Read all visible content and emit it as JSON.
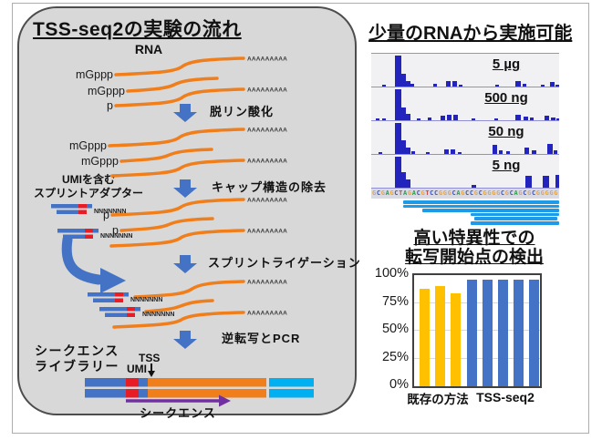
{
  "colors": {
    "rna_orange": "#F07E1A",
    "step_arrow_blue": "#4472C4",
    "adapter_blue": "#4472C4",
    "umi_red": "#E81C24",
    "library_cyan": "#00B0F0",
    "sequence_arrow_purple": "#7030A0",
    "panel_fill": "#D8D8D8",
    "panel_border": "#4D4D4D",
    "track_bar_blue": "#2323BE",
    "read_blue": "#1E9BE8",
    "chart_yellow": "#FFC000",
    "chart_blue": "#4472C4",
    "base_A": "#2E9E4F",
    "base_C": "#3B53C4",
    "base_G": "#E8A33D",
    "base_T": "#D94040"
  },
  "left_panel": {
    "title": "TSS-seq2の実験の流れ",
    "rna_heading": "RNA",
    "strand_labels": {
      "mgppp": "mGppp",
      "p": "p"
    },
    "polya_tail": "AAAAAAAAA",
    "adapter_n": "NNNNNNN",
    "steps": [
      "脱リン酸化",
      "キャップ構造の除去",
      "スプリントライゲーション",
      "逆転写とPCR"
    ],
    "adapter_caption": [
      "UMIを含む",
      "スプリントアダプター"
    ],
    "library_caption": [
      "シークエンス",
      "ライブラリー"
    ],
    "umi_label": "UMI",
    "tss_label": "TSS",
    "sequencing_label": "シークエンス"
  },
  "right_top": {
    "title": "少量のRNAから実施可能",
    "tracks": [
      {
        "label": "5 µg",
        "bars": [
          [
            12,
            4,
            0.06
          ],
          [
            26,
            7,
            1.0
          ],
          [
            33,
            5,
            0.4
          ],
          [
            38,
            5,
            0.18
          ],
          [
            43,
            4,
            0.08
          ],
          [
            68,
            4,
            0.08
          ],
          [
            82,
            5,
            0.17
          ],
          [
            89,
            5,
            0.17
          ],
          [
            96,
            4,
            0.06
          ],
          [
            136,
            4,
            0.05
          ],
          [
            158,
            6,
            0.18
          ],
          [
            166,
            4,
            0.08
          ],
          [
            186,
            4,
            0.05
          ],
          [
            196,
            5,
            0.14
          ],
          [
            202,
            4,
            0.07
          ]
        ]
      },
      {
        "label": "500 ng",
        "bars": [
          [
            5,
            4,
            0.05
          ],
          [
            12,
            4,
            0.06
          ],
          [
            26,
            7,
            1.0
          ],
          [
            33,
            5,
            0.42
          ],
          [
            38,
            5,
            0.2
          ],
          [
            50,
            4,
            0.06
          ],
          [
            62,
            4,
            0.08
          ],
          [
            76,
            5,
            0.14
          ],
          [
            83,
            5,
            0.17
          ],
          [
            90,
            5,
            0.17
          ],
          [
            110,
            4,
            0.06
          ],
          [
            135,
            4,
            0.07
          ],
          [
            158,
            6,
            0.18
          ],
          [
            167,
            5,
            0.12
          ],
          [
            174,
            4,
            0.08
          ],
          [
            190,
            5,
            0.15
          ],
          [
            197,
            5,
            0.1
          ],
          [
            203,
            3,
            0.06
          ]
        ]
      },
      {
        "label": "50 ng",
        "bars": [
          [
            8,
            4,
            0.05
          ],
          [
            26,
            7,
            1.0
          ],
          [
            33,
            5,
            0.45
          ],
          [
            38,
            5,
            0.2
          ],
          [
            44,
            4,
            0.08
          ],
          [
            60,
            4,
            0.06
          ],
          [
            80,
            5,
            0.15
          ],
          [
            87,
            5,
            0.15
          ],
          [
            95,
            4,
            0.06
          ],
          [
            133,
            5,
            0.28
          ],
          [
            140,
            4,
            0.12
          ],
          [
            148,
            4,
            0.08
          ],
          [
            168,
            5,
            0.2
          ],
          [
            176,
            5,
            0.12
          ],
          [
            193,
            6,
            0.32
          ],
          [
            200,
            4,
            0.12
          ]
        ]
      },
      {
        "label": "5 ng",
        "bars": [
          [
            26,
            7,
            1.0
          ],
          [
            33,
            5,
            0.5
          ],
          [
            38,
            5,
            0.25
          ],
          [
            110,
            5,
            0.1
          ],
          [
            169,
            7,
            0.38
          ],
          [
            188,
            7,
            0.38
          ],
          [
            202,
            4,
            0.4
          ]
        ]
      }
    ],
    "genome_sequence": "GCGAGCTAGACGTCCGGGCAGCCGCGGGGCGCAGCGCGGGGG",
    "reads": [
      [
        17,
        100
      ],
      [
        17,
        100
      ],
      [
        27,
        100
      ],
      [
        53,
        100
      ],
      [
        55,
        99
      ],
      [
        53,
        100
      ]
    ]
  },
  "right_bottom": {
    "title": [
      "高い特異性での",
      "転写開始点の検出"
    ]
  },
  "chart_data": {
    "type": "bar",
    "title": "高い特異性での転写開始点の検出",
    "xlabel": "",
    "ylabel": "",
    "ylim": [
      0,
      100
    ],
    "yticks": [
      "0%",
      "25%",
      "50%",
      "75%",
      "100%"
    ],
    "grid": true,
    "legend_position": "none",
    "groups": [
      {
        "name": "既存の方法",
        "color": "#FFC000",
        "values": [
          88,
          90,
          84
        ]
      },
      {
        "name": "TSS-seq2",
        "color": "#4472C4",
        "values": [
          96,
          96,
          96,
          96,
          96
        ]
      }
    ]
  }
}
